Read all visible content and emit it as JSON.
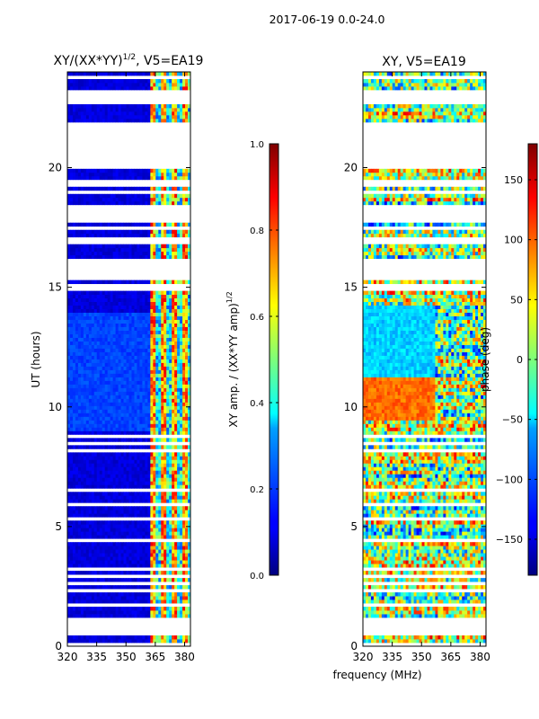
{
  "page": {
    "suptitle": "2017-06-19 0.0-24.0",
    "shared_xlabel": "frequency (MHz)"
  },
  "chart_data": [
    {
      "type": "heatmap",
      "title": "XY/(XX*YY)",
      "title_sup": "1/2",
      "title_suffix": ", V5=EA19",
      "xlabel": "",
      "ylabel": "UT (hours)",
      "xlim": [
        320,
        383
      ],
      "ylim": [
        0,
        24
      ],
      "xticks": [
        320,
        335,
        350,
        365,
        380
      ],
      "yticks": [
        0,
        5,
        10,
        15,
        20
      ],
      "colorbar": {
        "label": "XY amp. / (XX*YY amp)",
        "label_sup": "1/2",
        "ticks": [
          "0.0",
          "0.2",
          "0.4",
          "0.6",
          "0.8",
          "1.0"
        ],
        "range": [
          0,
          1
        ],
        "colormap": "jet"
      }
    },
    {
      "type": "heatmap",
      "title": "XY, V5=EA19",
      "xlabel": "frequency (MHz)",
      "ylabel": "",
      "xlim": [
        320,
        383
      ],
      "ylim": [
        0,
        24
      ],
      "xticks": [
        320,
        335,
        350,
        365,
        380
      ],
      "yticks": [
        0,
        5,
        10,
        15,
        20
      ],
      "colorbar": {
        "label": "phase (deg)",
        "ticks": [
          "−150",
          "−100",
          "−50",
          "0",
          "50",
          "100",
          "150"
        ],
        "range": [
          -180,
          180
        ],
        "colormap": "jet"
      }
    }
  ],
  "colors": {
    "jet_low": "#00007f",
    "jet_high": "#7f0000",
    "gap": "#ffffff"
  }
}
